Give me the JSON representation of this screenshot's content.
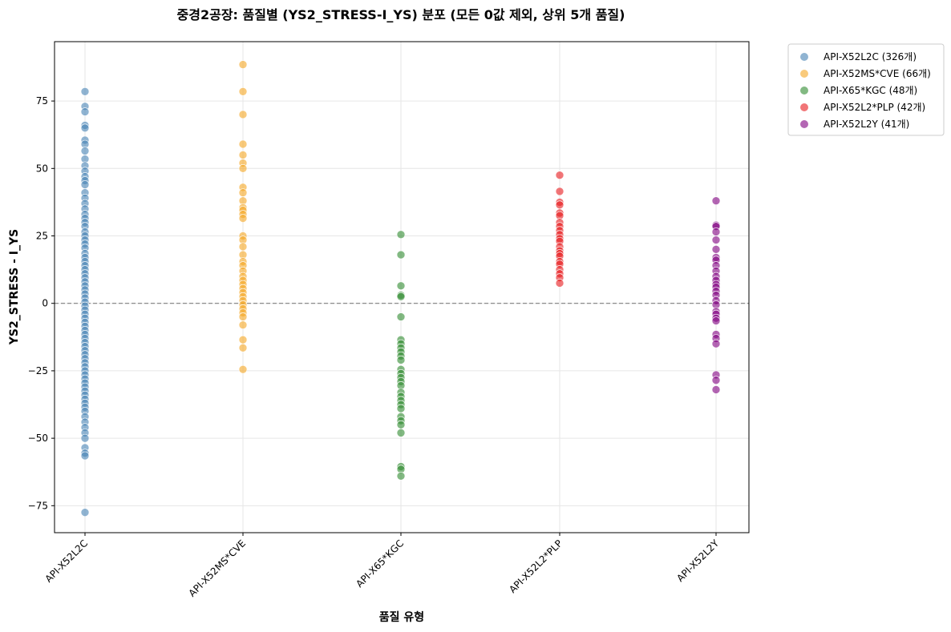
{
  "chart_data": {
    "type": "scatter",
    "title": "중경2공장: 품질별 (YS2_STRESS-I_YS) 분포 (모든 0값 제외, 상위 5개 품질)",
    "xlabel": "품질 유형",
    "ylabel": "YS2_STRESS - I_YS",
    "categories": [
      "API-X52L2C",
      "API-X52MS*CVE",
      "API-X65*KGC",
      "API-X52L2*PLP",
      "API-X52L2Y"
    ],
    "ylim": [
      -85,
      97
    ],
    "yticks": [
      -75,
      -50,
      -25,
      0,
      25,
      50,
      75
    ],
    "ytick_labels": [
      "−75",
      "−50",
      "−25",
      "0",
      "25",
      "50",
      "75"
    ],
    "reference_line": {
      "y": 0,
      "style": "dashed",
      "color": "#808080"
    },
    "grid": true,
    "legend_position": "outside-top-right",
    "series": [
      {
        "name": "API-X52L2C (326개)",
        "category": "API-X52L2C",
        "color": "#4682b4",
        "values": [
          78.5,
          73,
          71,
          66,
          65,
          60.5,
          59,
          56.5,
          53.5,
          51,
          49,
          47,
          45.5,
          44,
          41,
          39,
          37,
          35,
          33,
          31.5,
          30,
          28.5,
          26.5,
          25,
          23.5,
          22,
          20.5,
          18.5,
          17,
          15.5,
          14,
          12.5,
          11,
          9.5,
          8,
          6.5,
          5,
          3.5,
          2,
          0.5,
          -1,
          -2.5,
          -4,
          -5.5,
          -7,
          -8.5,
          -10,
          -11.5,
          -13,
          -14.5,
          -16,
          -17.5,
          -19,
          -20.5,
          -22,
          -23.5,
          -25,
          -26.5,
          -28,
          -29.5,
          -31,
          -32.5,
          -34,
          -35.5,
          -37,
          -38.5,
          -40,
          -42,
          -44,
          -46,
          -48,
          -50,
          -53.5,
          -55.5,
          -56.5,
          -77.5
        ]
      },
      {
        "name": "API-X52MS*CVE (66개)",
        "category": "API-X52MS*CVE",
        "color": "#f5a623",
        "values": [
          88.5,
          78.5,
          70,
          59,
          55,
          52,
          50,
          43,
          41,
          38,
          35.5,
          34.5,
          33,
          31.5,
          25,
          23.5,
          21,
          18,
          15.5,
          14,
          12,
          10,
          8.5,
          7,
          5.5,
          4,
          2.5,
          1,
          -0.5,
          -2,
          -3.5,
          -5,
          -8,
          -13.5,
          -16.5,
          -24.5
        ]
      },
      {
        "name": "API-X65*KGC (48개)",
        "category": "API-X65*KGC",
        "color": "#2e8b2e",
        "values": [
          25.5,
          18,
          6.5,
          3,
          2.5,
          -5,
          -13.5,
          -15,
          -16.5,
          -18,
          -19.5,
          -21,
          -24.5,
          -26,
          -27.5,
          -29,
          -30.5,
          -33,
          -34.5,
          -36,
          -37.5,
          -39,
          -42,
          -43.5,
          -45,
          -48,
          -60.5,
          -61.5,
          -64
        ]
      },
      {
        "name": "API-X52L2*PLP (42개)",
        "category": "API-X52L2*PLP",
        "color": "#e8191c",
        "values": [
          47.5,
          41.5,
          37.5,
          36.5,
          33.5,
          32.5,
          30,
          28.5,
          27,
          25.5,
          24,
          23,
          21,
          19.5,
          18.5,
          17.5,
          15.5,
          14.5,
          12.5,
          11,
          9.5,
          7.5
        ]
      },
      {
        "name": "API-X52L2Y (41개)",
        "category": "API-X52L2Y",
        "color": "#800080",
        "values": [
          38,
          29,
          28.5,
          26.5,
          23.5,
          20,
          17,
          16,
          14,
          12,
          10,
          8.5,
          7,
          6,
          4.5,
          3,
          1,
          -0.5,
          -3,
          -4,
          -5.5,
          -6.5,
          -11.5,
          -13,
          -15,
          -26.5,
          -28.5,
          -32
        ]
      }
    ]
  }
}
